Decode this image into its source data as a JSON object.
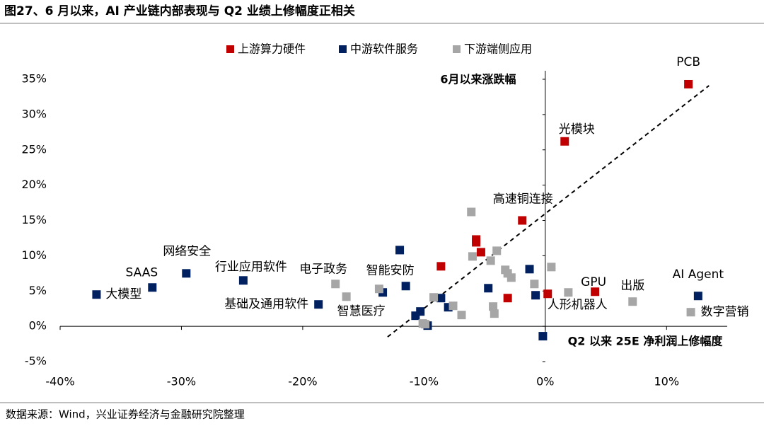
{
  "chart_data": {
    "type": "scatter",
    "title": "图27、6 月以来，AI 产业链内部表现与 Q2 业绩上修幅度正相关",
    "source": "数据来源：Wind，兴业证券经济与金融研究院整理",
    "x_label": "Q2 以来 25E 净利润上修幅度",
    "y_label": "6月以来涨跌幅",
    "xlim": [
      -40,
      15
    ],
    "ylim": [
      -5,
      35
    ],
    "xticks": [
      {
        "value": -40,
        "label": "-40%"
      },
      {
        "value": -30,
        "label": "-30%"
      },
      {
        "value": -20,
        "label": "-20%"
      },
      {
        "value": -10,
        "label": "-10%"
      },
      {
        "value": 0,
        "label": "0%"
      },
      {
        "value": 10,
        "label": "10%"
      }
    ],
    "yticks": [
      {
        "value": -5,
        "label": "-5%"
      },
      {
        "value": 0,
        "label": "0%"
      },
      {
        "value": 5,
        "label": "5%"
      },
      {
        "value": 10,
        "label": "10%"
      },
      {
        "value": 15,
        "label": "15%"
      },
      {
        "value": 20,
        "label": "20%"
      },
      {
        "value": 25,
        "label": "25%"
      },
      {
        "value": 30,
        "label": "30%"
      },
      {
        "value": 35,
        "label": "35%"
      }
    ],
    "legend": "top",
    "series": [
      {
        "name": "上游算力硬件",
        "color": "#c00000",
        "x": [
          11.8,
          1.6,
          -1.9,
          -5.7,
          -5.7,
          -5.3,
          -8.6,
          -3.1,
          0.2,
          4.1
        ],
        "values": [
          34.3,
          26.2,
          15.0,
          12.3,
          11.9,
          10.5,
          8.5,
          4.0,
          4.6,
          4.9
        ],
        "labels": [
          "PCB",
          "光模块",
          "高速铜连接",
          null,
          null,
          null,
          null,
          null,
          "人形机器人",
          "GPU"
        ]
      },
      {
        "name": "中游软件服务",
        "color": "#002060",
        "x": [
          -37.0,
          -32.4,
          -29.6,
          -24.9,
          -18.7,
          -12.0,
          -13.4,
          -11.5,
          -10.7,
          -10.3,
          -9.7,
          -8.6,
          -8.0,
          -4.7,
          -1.3,
          -0.8,
          -0.2,
          12.6
        ],
        "values": [
          4.5,
          5.5,
          7.5,
          6.5,
          3.1,
          10.8,
          4.8,
          5.7,
          1.5,
          2.1,
          0.1,
          4.0,
          2.7,
          5.4,
          8.1,
          4.4,
          -1.4,
          4.3
        ],
        "labels": [
          "大模型",
          "SAAS",
          "网络安全",
          "行业应用软件",
          "基础及通用软件",
          null,
          null,
          "智能安防",
          null,
          null,
          null,
          null,
          null,
          null,
          null,
          null,
          null,
          "AI Agent"
        ]
      },
      {
        "name": "下游端侧应用",
        "color": "#a6a6a6",
        "x": [
          -17.3,
          -16.4,
          -13.7,
          -10.1,
          -9.9,
          -9.2,
          -7.6,
          -6.9,
          -6.1,
          -6.0,
          -4.0,
          -4.5,
          -3.3,
          -3.1,
          -2.8,
          -4.3,
          -4.2,
          -0.9,
          0.5,
          1.9,
          7.2,
          12.0
        ],
        "values": [
          6.0,
          4.2,
          5.3,
          0.4,
          0.3,
          4.1,
          2.9,
          1.6,
          16.2,
          9.9,
          10.7,
          9.3,
          8.0,
          7.5,
          6.9,
          2.8,
          1.8,
          6.0,
          8.4,
          4.8,
          3.5,
          2.0
        ],
        "labels": [
          "电子政务",
          "智慧医疗",
          null,
          null,
          null,
          null,
          null,
          null,
          null,
          null,
          null,
          null,
          null,
          null,
          null,
          null,
          null,
          null,
          null,
          null,
          "出版",
          "数字营销"
        ]
      }
    ],
    "trend_line": {
      "x": [
        -13.0,
        13.5
      ],
      "y": [
        -1.5,
        34.1
      ]
    }
  }
}
